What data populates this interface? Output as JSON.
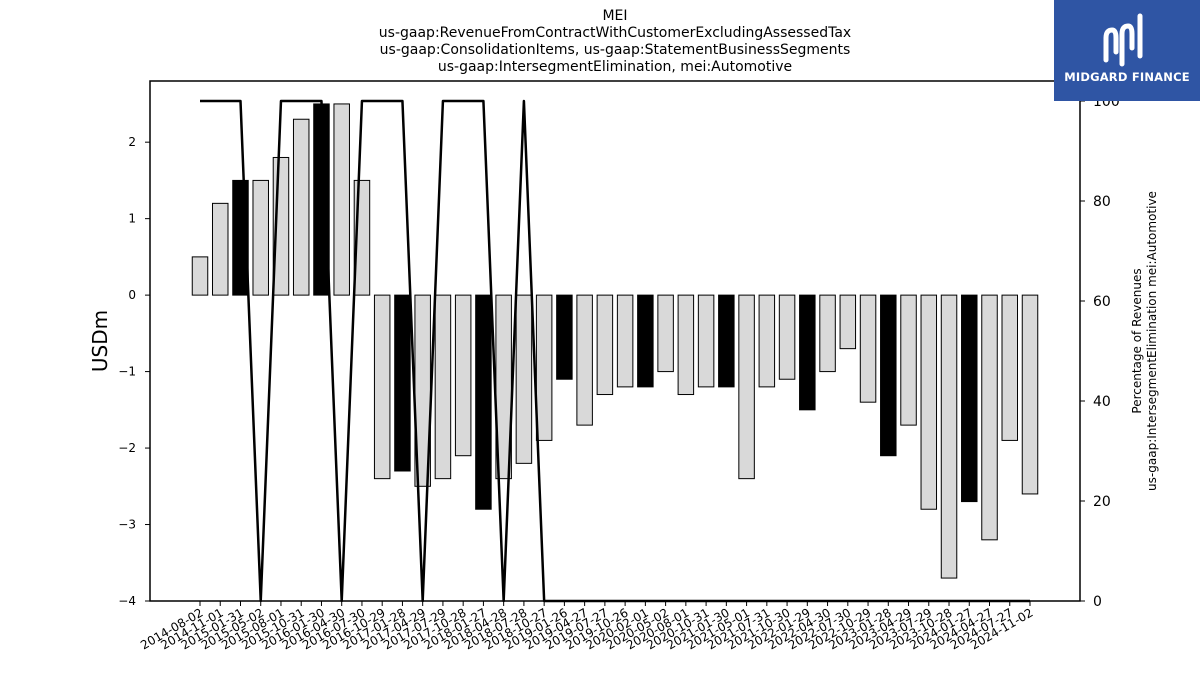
{
  "brand": {
    "name": "MIDGARD FINANCE",
    "bg_color": "#2f55a4"
  },
  "chart_data": {
    "type": "bar",
    "title_lines": [
      "MEI",
      "us-gaap:RevenueFromContractWithCustomerExcludingAssessedTax",
      "us-gaap:ConsolidationItems, us-gaap:StatementBusinessSegments",
      "us-gaap:IntersegmentElimination, mei:Automotive"
    ],
    "ylabel": "USDm",
    "y2label_lines": [
      "Percentage of Revenues",
      "us-gaap:IntersegmentElimination mei:Automotive"
    ],
    "ylim": [
      -4,
      2.8
    ],
    "y_ticks": [
      -4,
      -3,
      -2,
      -1,
      0,
      1,
      2
    ],
    "y2lim": [
      0,
      104
    ],
    "y2_ticks": [
      0,
      20,
      40,
      60,
      80,
      100
    ],
    "categories": [
      "2014-08-02",
      "2014-11-01",
      "2015-01-31",
      "2015-05-02",
      "2015-08-01",
      "2015-10-31",
      "2016-01-30",
      "2016-04-30",
      "2016-07-30",
      "2016-10-29",
      "2017-01-28",
      "2017-04-29",
      "2017-07-29",
      "2017-10-28",
      "2018-01-27",
      "2018-04-28",
      "2018-07-28",
      "2018-10-27",
      "2019-01-26",
      "2019-04-27",
      "2019-07-27",
      "2019-10-26",
      "2020-02-01",
      "2020-05-02",
      "2020-08-01",
      "2020-10-31",
      "2021-01-30",
      "2021-05-01",
      "2021-07-31",
      "2021-10-30",
      "2022-01-29",
      "2022-04-30",
      "2022-07-30",
      "2022-10-29",
      "2023-01-28",
      "2023-04-29",
      "2023-07-29",
      "2023-10-28",
      "2024-01-27",
      "2024-04-27",
      "2024-07-27",
      "2024-11-02"
    ],
    "series": [
      {
        "type": "bar",
        "values": [
          0.5,
          1.2,
          1.5,
          1.5,
          1.8,
          2.3,
          2.5,
          2.5,
          1.5,
          -2.4,
          -2.3,
          -2.5,
          -2.4,
          -2.1,
          -2.8,
          -2.4,
          -2.2,
          -1.9,
          -1.1,
          -1.7,
          -1.3,
          -1.2,
          -1.2,
          -1.0,
          -1.3,
          -1.2,
          -1.2,
          -2.4,
          -1.2,
          -1.1,
          -1.5,
          -1.0,
          -0.7,
          -1.4,
          -2.1,
          -1.7,
          -2.8,
          -3.7,
          -2.7,
          -3.2,
          -1.9,
          -2.6
        ],
        "highlight_indices": [
          2,
          6,
          10,
          14,
          18,
          22,
          26,
          30,
          34,
          38
        ],
        "colors": {
          "normal": "#d9d9d9",
          "highlight": "#000000"
        }
      },
      {
        "type": "line",
        "axis": "right",
        "values": [
          100,
          100,
          100,
          0,
          100,
          100,
          100,
          0,
          100,
          100,
          100,
          0,
          100,
          100,
          100,
          0,
          100,
          0,
          0,
          0,
          0,
          0,
          0,
          0,
          0,
          0,
          0,
          0,
          0,
          0,
          0,
          0,
          0,
          0,
          0,
          0,
          0,
          0,
          0,
          0,
          0,
          0
        ],
        "color": "#000000"
      }
    ]
  }
}
